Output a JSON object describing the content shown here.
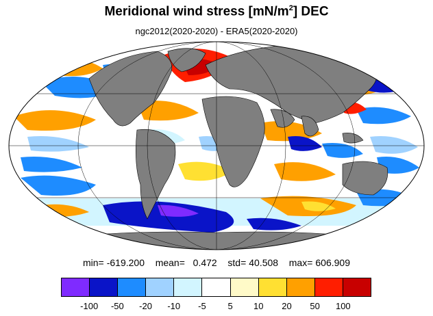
{
  "title": "Meridional wind stress [mN/m",
  "title_sup": "2",
  "title_end": "] DEC",
  "subtitle": "ngc2012(2020-2020) - ERA5(2020-2020)",
  "stats": {
    "min_label": "min=",
    "min": "-619.200",
    "mean_label": "mean=",
    "mean": "0.472",
    "std_label": "std=",
    "std": "40.508",
    "max_label": "max=",
    "max": "606.909"
  },
  "colorbar": {
    "colors": [
      "#7f2bff",
      "#0a14c8",
      "#1e8cff",
      "#a0d2ff",
      "#d2f5ff",
      "#ffffff",
      "#fffac8",
      "#ffe032",
      "#ffa000",
      "#ff1e00",
      "#c80000"
    ],
    "labels": [
      "-100",
      "-50",
      "-20",
      "-10",
      "-5",
      "5",
      "10",
      "20",
      "50",
      "100"
    ]
  },
  "map": {
    "projection": "mollweide",
    "land_color": "#7f7f7f",
    "ocean_default": "#ffffff"
  }
}
